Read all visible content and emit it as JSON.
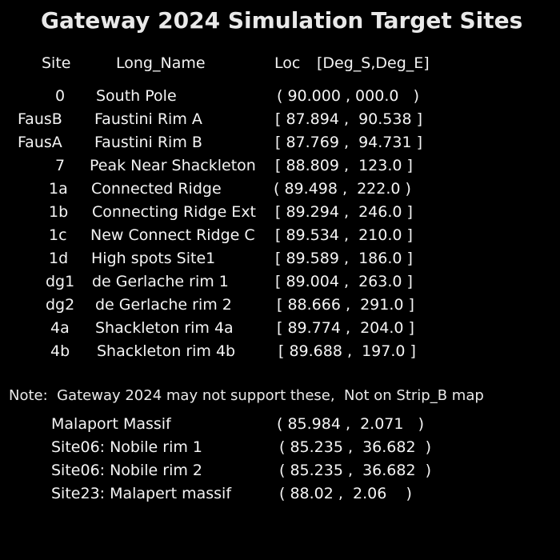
{
  "title": "Gateway 2024 Simulation Target Sites",
  "headers": {
    "site": "Site",
    "long_name": "Long_Name",
    "loc": "Loc",
    "units": "[Deg_S,Deg_E]"
  },
  "sites": [
    {
      "site": "0",
      "long_name": "South Pole",
      "loc": "( 90.000 , 000.0   )"
    },
    {
      "site": "FausB",
      "long_name": "Faustini Rim A",
      "loc": "[ 87.894 ,  90.538 ]"
    },
    {
      "site": "FausA",
      "long_name": "Faustini Rim B",
      "loc": "[ 87.769 ,  94.731 ]"
    },
    {
      "site": "7",
      "long_name": "Peak Near Shackleton",
      "loc": "[ 88.809 ,  123.0 ]"
    },
    {
      "site": "1a",
      "long_name": "Connected Ridge",
      "loc": "( 89.498 ,  222.0 )"
    },
    {
      "site": "1b",
      "long_name": "Connecting Ridge Ext",
      "loc": "[ 89.294 ,  246.0 ]"
    },
    {
      "site": "1c",
      "long_name": "New Connect Ridge C",
      "loc": "[ 89.534 ,  210.0 ]"
    },
    {
      "site": "1d",
      "long_name": "High spots Site1",
      "loc": "[ 89.589 ,  186.0 ]"
    },
    {
      "site": "dg1",
      "long_name": "de Gerlache rim 1",
      "loc": "[ 89.004 ,  263.0 ]"
    },
    {
      "site": "dg2",
      "long_name": "de Gerlache rim 2",
      "loc": "[ 88.666 ,  291.0 ]"
    },
    {
      "site": "4a",
      "long_name": "Shackleton rim 4a",
      "loc": "[ 89.774 ,  204.0 ]"
    },
    {
      "site": "4b",
      "long_name": "Shackleton rim 4b",
      "loc": "[ 89.688 ,  197.0 ]"
    }
  ],
  "note": "Note:  Gateway 2024 may not support these,  Not on Strip_B map",
  "extra_sites": [
    {
      "name": "Malaport Massif",
      "loc": "( 85.984 ,  2.071   )"
    },
    {
      "name": "Site06: Nobile rim 1",
      "loc": "( 85.235 ,  36.682  )"
    },
    {
      "name": "Site06: Nobile rim 2",
      "loc": "( 85.235 ,  36.682  )"
    },
    {
      "name": "Site23: Malapert massif",
      "loc": "( 88.02 ,  2.06    )"
    }
  ]
}
